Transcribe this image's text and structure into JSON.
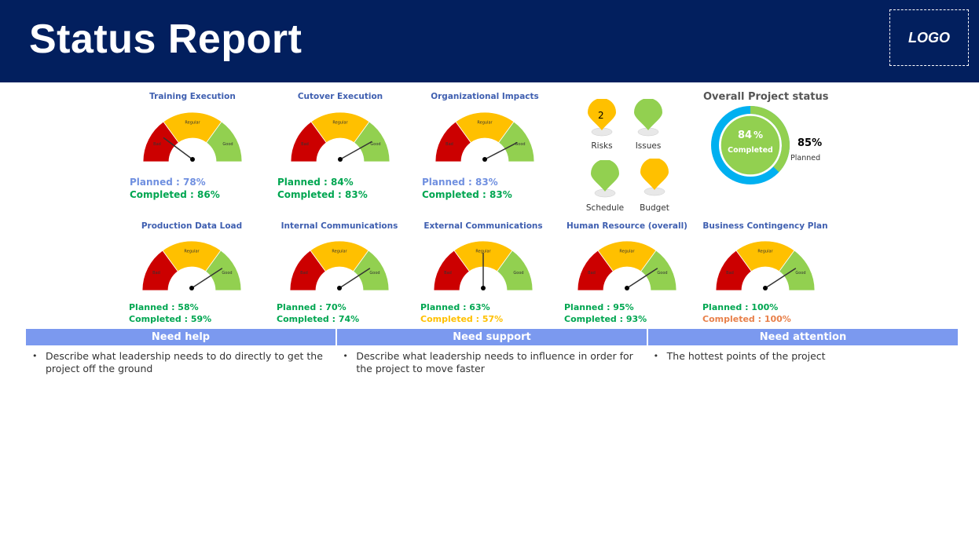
{
  "header": {
    "title": "Status Report",
    "logo": "LOGO"
  },
  "gauge_scale": {
    "low": "Bad",
    "mid": "Regular",
    "high": "Good",
    "colors": {
      "low": "#cc0000",
      "mid": "#ffc000",
      "high": "#92d050"
    }
  },
  "gauges": [
    {
      "title": "Training Execution",
      "planned": "Planned : 78%",
      "completed": "Completed : 86%",
      "needle": 0.22,
      "planned_color": "#7090e0",
      "completed_color": "#00a651"
    },
    {
      "title": "Cutover Execution",
      "planned": "Planned : 84%",
      "completed": "Completed : 83%",
      "needle": 0.82,
      "planned_color": "#00a651",
      "completed_color": "#00a651"
    },
    {
      "title": "Organizational Impacts",
      "planned": "Planned : 83%",
      "completed": "Completed :  83%",
      "needle": 0.83,
      "planned_color": "#7090e0",
      "completed_color": "#00a651"
    },
    {
      "title": "Production Data Load",
      "planned": "Planned : 58%",
      "completed": "Completed : 59%",
      "needle": 0.8,
      "planned_color": "#00a651",
      "completed_color": "#00a651"
    },
    {
      "title": "Internal Communications",
      "planned": "Planned : 70%",
      "completed": "Completed : 74%",
      "needle": 0.8,
      "planned_color": "#00a651",
      "completed_color": "#00a651"
    },
    {
      "title": "External Communications",
      "planned": "Planned : 63%",
      "completed": "Completed : 57%",
      "needle": 0.5,
      "planned_color": "#00a651",
      "completed_color": "#ffc000"
    },
    {
      "title": "Human Resource (overall)",
      "planned": "Planned : 95%",
      "completed": "Completed : 93%",
      "needle": 0.8,
      "planned_color": "#00a651",
      "completed_color": "#00a651"
    },
    {
      "title": "Business Contingency Plan",
      "planned": "Planned : 100%",
      "completed": "Completed : 100%",
      "needle": 0.8,
      "planned_color": "#00a651",
      "completed_color": "#e8804a"
    }
  ],
  "indicators": [
    {
      "label": "Risks",
      "value": "2",
      "color": "#ffc000"
    },
    {
      "label": "Issues",
      "value": "",
      "color": "#92d050"
    },
    {
      "label": "Schedule",
      "value": "",
      "color": "#92d050"
    },
    {
      "label": "Budget",
      "value": "",
      "color": "#ffc000"
    }
  ],
  "overall": {
    "title": "Overall Project status",
    "completed_value": "84",
    "completed_pct": "%",
    "completed_label": "Completed",
    "planned_value": "85%",
    "planned_label": "Planned",
    "ring_colors": {
      "planned": "#00b0f0",
      "completed": "#92d050"
    }
  },
  "table": {
    "headers": [
      "Need help",
      "Need support",
      "Need attention"
    ],
    "items": [
      "Describe what leadership needs to do directly to get the project off the ground",
      "Describe what leadership needs to influence in order for the project to move faster",
      "The hottest points of the project"
    ]
  }
}
